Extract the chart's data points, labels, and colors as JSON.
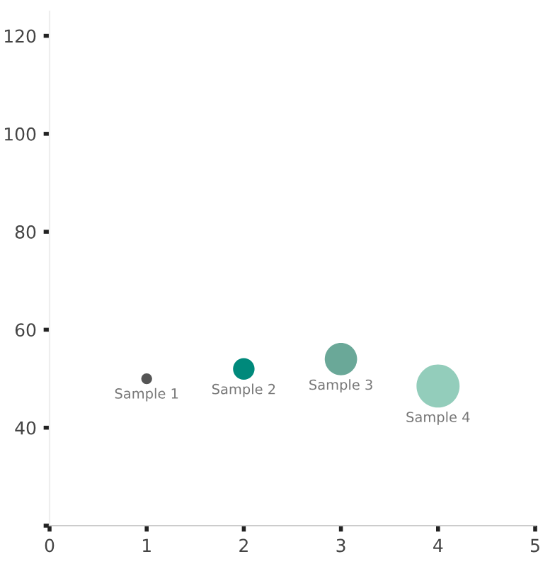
{
  "chart_data": {
    "type": "bubble",
    "series": [
      {
        "name": "Sample 1",
        "color": "#555555",
        "x": [
          1
        ],
        "values": [
          50
        ],
        "sizes": [
          0.0625
        ]
      },
      {
        "name": "Sample 2",
        "color": "#00897b",
        "x": [
          2
        ],
        "values": [
          52
        ],
        "sizes": [
          0.25
        ]
      },
      {
        "name": "Sample 3",
        "color": "#6aa898",
        "x": [
          3
        ],
        "values": [
          54
        ],
        "sizes": [
          0.5625
        ]
      },
      {
        "name": "Sample 4",
        "color": "#93cdbb",
        "x": [
          4
        ],
        "values": [
          48.5
        ],
        "sizes": [
          1
        ]
      }
    ],
    "xlim": [
      0,
      5
    ],
    "xticks": [
      0,
      1,
      2,
      3,
      4,
      5
    ],
    "ylim": [
      20,
      125
    ],
    "yticks": [
      {
        "value": 20,
        "label": null
      },
      40,
      60,
      80,
      100,
      120
    ],
    "grid": false,
    "legend": false
  }
}
